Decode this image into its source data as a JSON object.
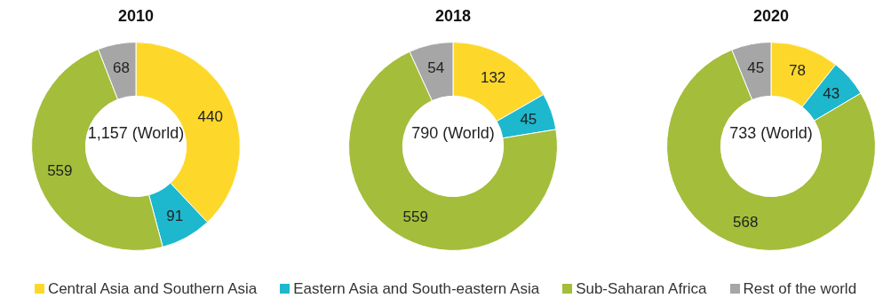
{
  "chart_data": [
    {
      "type": "donut",
      "title": "2010",
      "categories": [
        "Central Asia and Southern Asia",
        "Eastern Asia and South-eastern Asia",
        "Sub-Saharan Africa",
        "Rest of the world"
      ],
      "values": [
        440,
        91,
        559,
        68
      ],
      "colors": [
        "#fdd82b",
        "#1db8ce",
        "#a4bd3b",
        "#a6a6a6"
      ],
      "data_labels": true,
      "annotations": [
        "1,157 (World)"
      ],
      "legend": "bottom"
    },
    {
      "type": "donut",
      "title": "2018",
      "categories": [
        null,
        null,
        null,
        null
      ],
      "values": [
        132,
        45,
        559,
        54
      ],
      "colors": [
        "#fdd82b",
        "#1db8ce",
        "#a4bd3b",
        "#a6a6a6"
      ],
      "data_labels": true,
      "annotations": [
        "790 (World)"
      ]
    },
    {
      "type": "donut",
      "title": "2020",
      "categories": [
        null,
        null,
        null,
        null
      ],
      "values": [
        78,
        43,
        568,
        45
      ],
      "colors": [
        "#fdd82b",
        "#1db8ce",
        "#a4bd3b",
        "#a6a6a6"
      ],
      "data_labels": true,
      "annotations": [
        "733 (World)"
      ]
    }
  ]
}
